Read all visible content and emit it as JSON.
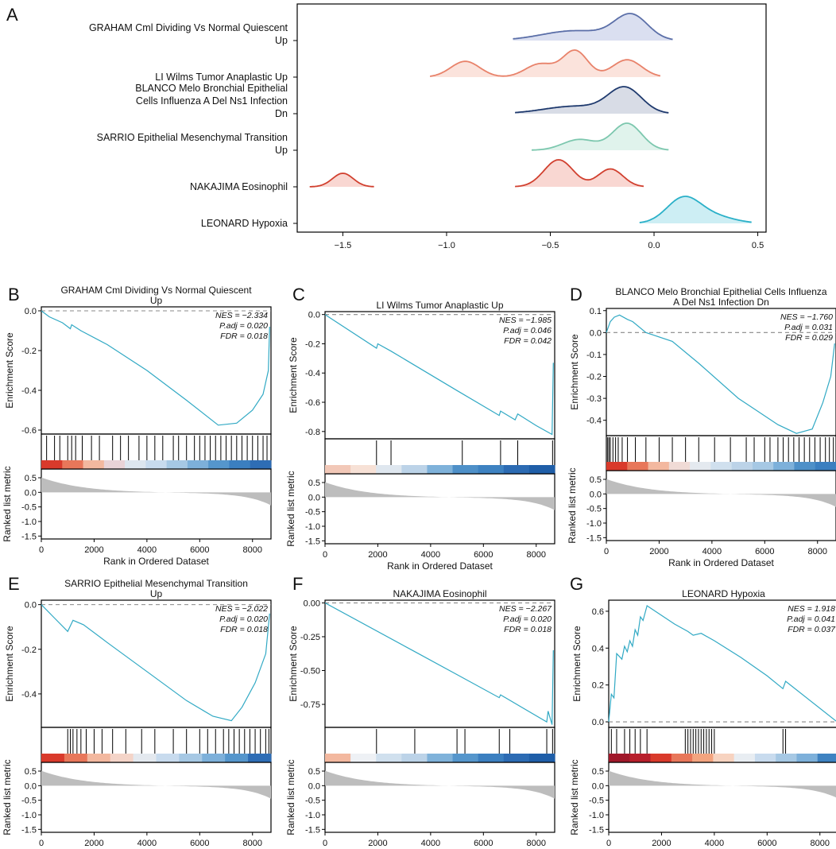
{
  "figure": {
    "panel_a": {
      "letter": "A",
      "type": "ridge",
      "x_ticks": [
        "−1.5",
        "−1.0",
        "−0.5",
        "0.0",
        "0.5"
      ],
      "ridges": [
        {
          "label_lines": [
            "GRAHAM Cml Dividing Vs Normal Quiescent",
            "Up"
          ],
          "color": "#5b6fa8",
          "fill": "#dadff0",
          "range": [
            -0.68,
            0.09
          ],
          "peaks": [
            {
              "x": -0.38,
              "h": 0.4,
              "w": 0.16
            },
            {
              "x": -0.11,
              "h": 1.0,
              "w": 0.08
            }
          ]
        },
        {
          "label_lines": [
            "LI Wilms Tumor Anaplastic Up"
          ],
          "color": "#e8826a",
          "fill": "#fbe3dc",
          "range": [
            -1.08,
            0.03
          ],
          "peaks": [
            {
              "x": -0.91,
              "h": 0.6,
              "w": 0.07
            },
            {
              "x": -0.55,
              "h": 0.5,
              "w": 0.07
            },
            {
              "x": -0.38,
              "h": 1.0,
              "w": 0.06
            },
            {
              "x": -0.13,
              "h": 0.66,
              "w": 0.07
            }
          ]
        },
        {
          "label_lines": [
            "BLANCO Melo Bronchial Epithelial",
            "Cells Influenza A Del Ns1 Infection",
            "Dn"
          ],
          "color": "#1f3a6e",
          "fill": "#d8dce6",
          "range": [
            -0.67,
            0.07
          ],
          "peaks": [
            {
              "x": -0.38,
              "h": 0.3,
              "w": 0.15
            },
            {
              "x": -0.14,
              "h": 1.0,
              "w": 0.08
            }
          ]
        },
        {
          "label_lines": [
            "SARRIO Epithelial Mesenchymal Transition",
            "Up"
          ],
          "color": "#7cc7ae",
          "fill": "#e0f3ec",
          "range": [
            -0.59,
            0.07
          ],
          "peaks": [
            {
              "x": -0.36,
              "h": 0.4,
              "w": 0.08
            },
            {
              "x": -0.13,
              "h": 1.0,
              "w": 0.07
            }
          ]
        },
        {
          "label_lines": [
            "NAKAJIMA Eosinophil"
          ],
          "color": "#d1402f",
          "fill": "#f9d7d2",
          "range": [
            -1.66,
            -1.35
          ],
          "range2": [
            -0.67,
            -0.05
          ],
          "peaks": [
            {
              "x": -1.5,
              "h": 0.5,
              "w": 0.05
            },
            {
              "x": -0.46,
              "h": 1.0,
              "w": 0.07
            },
            {
              "x": -0.21,
              "h": 0.66,
              "w": 0.06
            }
          ]
        },
        {
          "label_lines": [
            "LEONARD Hypoxia"
          ],
          "color": "#2ab0c8",
          "fill": "#cdeef4",
          "range": [
            -0.07,
            0.47
          ],
          "peaks": [
            {
              "x": 0.14,
              "h": 1.0,
              "w": 0.08
            },
            {
              "x": 0.28,
              "h": 0.3,
              "w": 0.1
            }
          ]
        }
      ]
    },
    "gsea_panels": [
      {
        "letter": "B",
        "title_lines": [
          "GRAHAM Cml Dividing Vs Normal Quiescent",
          "Up"
        ],
        "stats": {
          "nes": "NES = −2.334",
          "padj": "P.adj = 0.020",
          "fdr": "FDR = 0.018"
        },
        "es_ticks": [
          "0.0",
          "-0.2",
          "-0.4",
          "-0.6"
        ],
        "es_tick_values": [
          0,
          -0.2,
          -0.4,
          -0.6
        ],
        "es_range": [
          -0.62,
          0.02
        ],
        "es_curve": [
          [
            0,
            0
          ],
          [
            300,
            -0.03
          ],
          [
            800,
            -0.06
          ],
          [
            1100,
            -0.09
          ],
          [
            1150,
            -0.07
          ],
          [
            1500,
            -0.1
          ],
          [
            2500,
            -0.17
          ],
          [
            4000,
            -0.3
          ],
          [
            5500,
            -0.45
          ],
          [
            6700,
            -0.575
          ],
          [
            7400,
            -0.565
          ],
          [
            8000,
            -0.5
          ],
          [
            8400,
            -0.42
          ],
          [
            8600,
            -0.3
          ],
          [
            8650,
            -0.08
          ]
        ],
        "hits": [
          200,
          500,
          700,
          1000,
          1150,
          1300,
          1550,
          1900,
          2200,
          2700,
          3000,
          3300,
          3700,
          4000,
          4300,
          4600,
          5000,
          5200,
          5500,
          5800,
          6000,
          6200,
          6400,
          6600,
          6800,
          7000,
          7200,
          7400,
          7600,
          7800,
          8000,
          8200,
          8400,
          8550
        ],
        "heat": [
          "#d93a2b",
          "#e8775a",
          "#f3b89f",
          "#e9d3d7",
          "#dde6ef",
          "#c8dbee",
          "#a6c8e4",
          "#7db0da",
          "#5596cc",
          "#3b7fc0",
          "#2e6db5"
        ]
      },
      {
        "letter": "C",
        "title_lines": [
          "LI Wilms Tumor Anaplastic Up"
        ],
        "stats": {
          "nes": "NES = −1.985",
          "padj": "P.adj = 0.046",
          "fdr": "FDR = 0.042"
        },
        "es_ticks": [
          "0.0",
          "-0.2",
          "-0.4",
          "-0.6",
          "-0.8"
        ],
        "es_tick_values": [
          0,
          -0.2,
          -0.4,
          -0.6,
          -0.8
        ],
        "es_range": [
          -0.85,
          0.02
        ],
        "es_curve": [
          [
            0,
            0
          ],
          [
            1950,
            -0.23
          ],
          [
            2000,
            -0.2
          ],
          [
            2500,
            -0.25
          ],
          [
            5000,
            -0.52
          ],
          [
            6600,
            -0.69
          ],
          [
            6650,
            -0.66
          ],
          [
            7200,
            -0.72
          ],
          [
            7300,
            -0.68
          ],
          [
            8000,
            -0.76
          ],
          [
            8600,
            -0.82
          ],
          [
            8650,
            -0.33
          ]
        ],
        "hits": [
          1950,
          2500,
          5200,
          6650,
          7300,
          8620
        ],
        "heat": [
          "#f2c8b8",
          "#f7e1d6",
          "#dfe7ef",
          "#bcd3e8",
          "#7fb2da",
          "#4e90c8",
          "#3e82c1",
          "#2c6bb3",
          "#1f5ea8"
        ]
      },
      {
        "letter": "D",
        "title_lines": [
          "BLANCO Melo Bronchial Epithelial Cells Influenza",
          "A Del Ns1 Infection Dn"
        ],
        "stats": {
          "nes": "NES = −1.760",
          "padj": "P.adj = 0.031",
          "fdr": "FDR = 0.029"
        },
        "es_ticks": [
          "0.1",
          "0.0",
          "-0.1",
          "-0.2",
          "-0.3",
          "-0.4"
        ],
        "es_tick_values": [
          0.1,
          0,
          -0.1,
          -0.2,
          -0.3,
          -0.4
        ],
        "es_range": [
          -0.47,
          0.11
        ],
        "es_curve": [
          [
            0,
            0
          ],
          [
            150,
            0.05
          ],
          [
            300,
            0.07
          ],
          [
            500,
            0.08
          ],
          [
            800,
            0.06
          ],
          [
            1000,
            0.05
          ],
          [
            1500,
            0.0
          ],
          [
            2500,
            -0.04
          ],
          [
            3500,
            -0.14
          ],
          [
            5000,
            -0.3
          ],
          [
            6500,
            -0.42
          ],
          [
            7200,
            -0.46
          ],
          [
            7800,
            -0.44
          ],
          [
            8200,
            -0.32
          ],
          [
            8500,
            -0.2
          ],
          [
            8650,
            -0.05
          ]
        ],
        "hits": [
          50,
          100,
          150,
          250,
          350,
          450,
          600,
          800,
          1100,
          1500,
          2000,
          2500,
          3000,
          3500,
          4100,
          4700,
          5300,
          5600,
          6000,
          6200,
          6500,
          6700,
          6900,
          7100,
          7300,
          7500,
          7700,
          7900,
          8100,
          8300,
          8450,
          8600
        ],
        "heat": [
          "#d93a2b",
          "#e8775a",
          "#f3b89f",
          "#f0dbd6",
          "#e4e9ef",
          "#d0e0ee",
          "#bcd3e8",
          "#a6c8e4",
          "#7db0da",
          "#4e90c8",
          "#3b7fc0"
        ]
      },
      {
        "letter": "E",
        "title_lines": [
          "SARRIO Epithelial Mesenchymal Transition",
          "Up"
        ],
        "stats": {
          "nes": "NES = −2.022",
          "padj": "P.adj = 0.020",
          "fdr": "FDR = 0.018"
        },
        "es_ticks": [
          "0.0",
          "-0.2",
          "-0.4"
        ],
        "es_tick_values": [
          0,
          -0.2,
          -0.4
        ],
        "es_range": [
          -0.55,
          0.02
        ],
        "es_curve": [
          [
            0,
            0
          ],
          [
            500,
            -0.06
          ],
          [
            1000,
            -0.12
          ],
          [
            1200,
            -0.07
          ],
          [
            1600,
            -0.09
          ],
          [
            2500,
            -0.17
          ],
          [
            4000,
            -0.3
          ],
          [
            5500,
            -0.43
          ],
          [
            6500,
            -0.5
          ],
          [
            7200,
            -0.52
          ],
          [
            7600,
            -0.46
          ],
          [
            8100,
            -0.35
          ],
          [
            8500,
            -0.22
          ],
          [
            8650,
            -0.04
          ]
        ],
        "hits": [
          1000,
          1100,
          1200,
          1350,
          1500,
          1700,
          2000,
          2300,
          2700,
          3200,
          3800,
          4300,
          5000,
          5500,
          6000,
          6300,
          6600,
          6900,
          7100,
          7300,
          7500,
          7700,
          7900,
          8100,
          8300,
          8500,
          8620
        ],
        "heat": [
          "#d93a2b",
          "#e8775a",
          "#f3b89f",
          "#f4d4c8",
          "#e4e9ef",
          "#c8dbee",
          "#a6c8e4",
          "#7db0da",
          "#5596cc",
          "#2e6db5"
        ]
      },
      {
        "letter": "F",
        "title_lines": [
          "NAKAJIMA Eosinophil"
        ],
        "stats": {
          "nes": "NES = −2.267",
          "padj": "P.adj = 0.020",
          "fdr": "FDR = 0.018"
        },
        "es_ticks": [
          "0.00",
          "-0.25",
          "-0.50",
          "-0.75"
        ],
        "es_tick_values": [
          0,
          -0.25,
          -0.5,
          -0.75
        ],
        "es_range": [
          -0.92,
          0.02
        ],
        "es_curve": [
          [
            0,
            0
          ],
          [
            3400,
            -0.36
          ],
          [
            5000,
            -0.53
          ],
          [
            6600,
            -0.7
          ],
          [
            6650,
            -0.68
          ],
          [
            8400,
            -0.88
          ],
          [
            8450,
            -0.8
          ],
          [
            8600,
            -0.9
          ],
          [
            8650,
            -0.35
          ]
        ],
        "hits": [
          1950,
          3400,
          5000,
          5300,
          6600,
          7000,
          8400,
          8620
        ],
        "heat": [
          "#f3b89f",
          "#eef1f5",
          "#d0e0ee",
          "#bcd3e8",
          "#7fb2da",
          "#5596cc",
          "#3b7fc0",
          "#2c6bb3",
          "#1f5ea8"
        ]
      },
      {
        "letter": "G",
        "title_lines": [
          "LEONARD Hypoxia"
        ],
        "stats": {
          "nes": "NES = 1.918",
          "padj": "P.adj = 0.041",
          "fdr": "FDR = 0.037"
        },
        "es_ticks": [
          "0.6",
          "0.4",
          "0.2",
          "0.0"
        ],
        "es_tick_values": [
          0.6,
          0.4,
          0.2,
          0
        ],
        "es_range": [
          -0.03,
          0.66
        ],
        "es_curve": [
          [
            0,
            0
          ],
          [
            100,
            0.15
          ],
          [
            200,
            0.13
          ],
          [
            300,
            0.37
          ],
          [
            500,
            0.34
          ],
          [
            600,
            0.41
          ],
          [
            700,
            0.38
          ],
          [
            800,
            0.44
          ],
          [
            900,
            0.41
          ],
          [
            1000,
            0.5
          ],
          [
            1100,
            0.47
          ],
          [
            1200,
            0.57
          ],
          [
            1300,
            0.55
          ],
          [
            1450,
            0.63
          ],
          [
            2500,
            0.53
          ],
          [
            3000,
            0.49
          ],
          [
            3200,
            0.47
          ],
          [
            3500,
            0.48
          ],
          [
            4000,
            0.44
          ],
          [
            5000,
            0.35
          ],
          [
            6000,
            0.25
          ],
          [
            6600,
            0.18
          ],
          [
            6700,
            0.22
          ],
          [
            8650,
            0.0
          ]
        ],
        "hits": [
          100,
          300,
          600,
          800,
          1000,
          1200,
          1450,
          2900,
          3000,
          3100,
          3200,
          3300,
          3400,
          3500,
          3600,
          3700,
          3800,
          3900,
          4000,
          6600,
          6700
        ],
        "heat": [
          "#a0182a",
          "#b71f2c",
          "#d93a2b",
          "#e8775a",
          "#f3a47f",
          "#f7d3c0",
          "#e8edf2",
          "#c8dbee",
          "#a6c8e4",
          "#7db0da",
          "#3e82c1"
        ]
      }
    ],
    "shared": {
      "x_ticks": [
        "0",
        "2000",
        "4000",
        "6000",
        "8000"
      ],
      "x_tick_values": [
        0,
        2000,
        4000,
        6000,
        8000
      ],
      "x_max": 8700,
      "rank_ticks": [
        "0.5",
        "0.0",
        "-0.5",
        "-1.0",
        "-1.5"
      ],
      "rank_tick_values": [
        0.5,
        0,
        -0.5,
        -1.0,
        -1.5
      ],
      "es_label": "Enrichment Score",
      "rank_label": "Ranked list metric",
      "x_label": "Rank in Ordered Dataset"
    }
  }
}
